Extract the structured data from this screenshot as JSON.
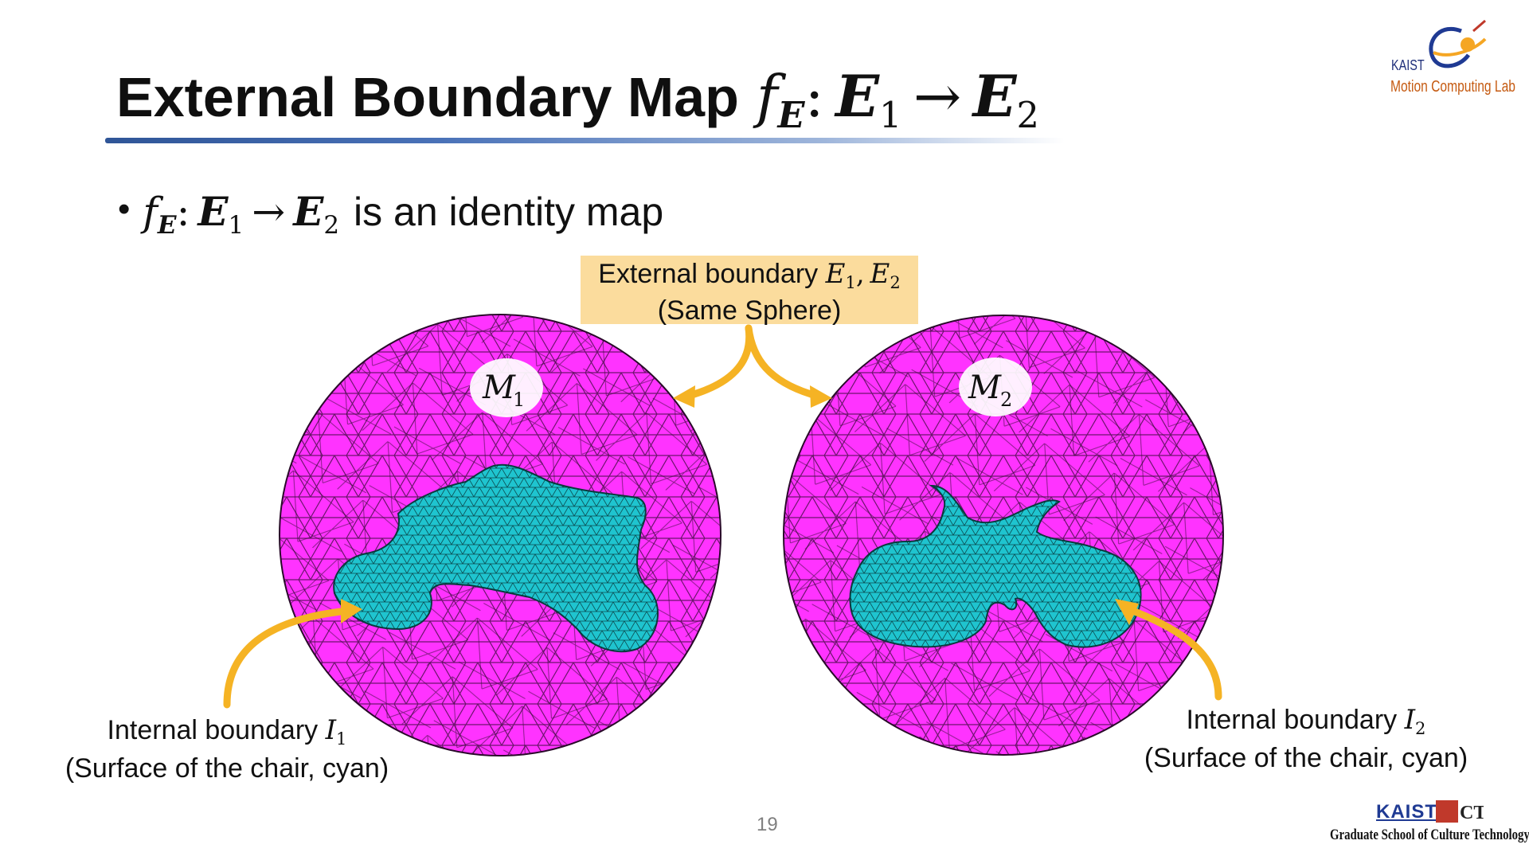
{
  "slide": {
    "title_text": "External Boundary Map",
    "title_f": "f",
    "title_f_sub": "E",
    "title_colon": ":",
    "title_dom": "E",
    "title_dom_sub": "1",
    "title_arrow": "→",
    "title_cod": "E",
    "title_cod_sub": "2",
    "bullet_symbol": "•",
    "bullet_f": "f",
    "bullet_f_sub": "E",
    "bullet_colon": ":",
    "bullet_dom": "E",
    "bullet_dom_sub": "1",
    "bullet_arrow": "→",
    "bullet_cod": "E",
    "bullet_cod_sub": "2",
    "bullet_text": "is an identity map",
    "page_number": "19"
  },
  "callout": {
    "line1_text": "External boundary",
    "line1_math_a": "E",
    "line1_math_a_sub": "1",
    "line1_sep": ",",
    "line1_math_b": "E",
    "line1_math_b_sub": "2",
    "line2": "(Same Sphere)"
  },
  "spheres": {
    "left_label": "M",
    "left_label_sub": "1",
    "right_label": "M",
    "right_label_sub": "2"
  },
  "captions": {
    "left_line1_text": "Internal boundary",
    "left_line1_math": "I",
    "left_line1_sub": "1",
    "left_line2": "(Surface of the chair, cyan)",
    "right_line1_text": "Internal boundary",
    "right_line1_math": "I",
    "right_line1_sub": "2",
    "right_line2": "(Surface of the chair, cyan)"
  },
  "logos": {
    "top_kaist": "KAIST",
    "top_lab": "Motion Computing Lab",
    "bottom_kaist": "KAIST",
    "bottom_ct": "CT",
    "bottom_school": "Graduate School of Culture Technology"
  },
  "colors": {
    "sphere_fill": "#ff33ff",
    "chair_fill": "#1fc4cf",
    "arrow": "#f5b324",
    "callout_bg": "#fbdc9d",
    "title_underline": "#2f5597"
  }
}
